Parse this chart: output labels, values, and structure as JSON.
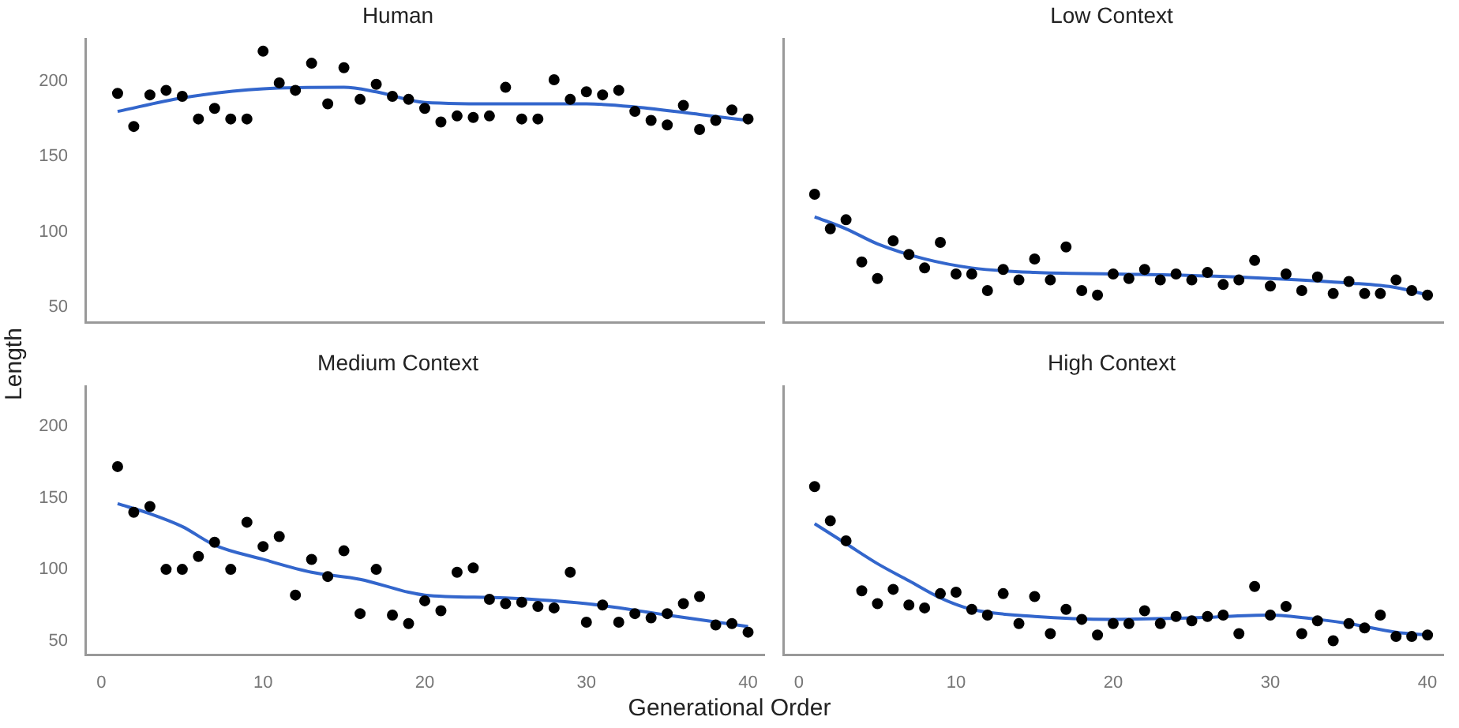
{
  "chart_data": [
    {
      "type": "scatter",
      "title": "Human",
      "ylabel": "Length",
      "xlim": [
        -1,
        41
      ],
      "ylim": [
        40,
        228
      ],
      "xticks": [
        0,
        10,
        20,
        30,
        40
      ],
      "yticks": [
        50,
        100,
        150,
        200
      ],
      "tick_labels": "y",
      "series": [
        {
          "color": "#000000",
          "marker": "circle",
          "x": [
            1,
            2,
            3,
            4,
            5,
            6,
            7,
            8,
            9,
            10,
            11,
            12,
            13,
            14,
            15,
            16,
            17,
            18,
            19,
            20,
            21,
            22,
            23,
            24,
            25,
            26,
            27,
            28,
            29,
            30,
            31,
            32,
            33,
            34,
            35,
            36,
            37,
            38,
            39,
            40
          ],
          "values": [
            192,
            170,
            191,
            194,
            190,
            175,
            182,
            175,
            175,
            220,
            199,
            194,
            212,
            185,
            209,
            188,
            198,
            190,
            188,
            182,
            173,
            177,
            176,
            177,
            196,
            175,
            175,
            201,
            188,
            193,
            191,
            194,
            180,
            174,
            171,
            184,
            168,
            174,
            181,
            175
          ]
        },
        {
          "type": "line",
          "color": "#3366cc",
          "marker": "none",
          "x": [
            1,
            5,
            10,
            15,
            17,
            20,
            25,
            30,
            33,
            37,
            40
          ],
          "values": [
            180,
            189,
            195,
            196,
            193,
            186,
            185,
            185,
            183,
            178,
            174
          ]
        }
      ]
    },
    {
      "type": "scatter",
      "title": "Low Context",
      "xlim": [
        -1,
        41
      ],
      "ylim": [
        40,
        228
      ],
      "xticks": [
        0,
        10,
        20,
        30,
        40
      ],
      "yticks": [
        50,
        100,
        150,
        200
      ],
      "tick_labels": false,
      "series": [
        {
          "color": "#000000",
          "marker": "circle",
          "x": [
            1,
            2,
            3,
            4,
            5,
            6,
            7,
            8,
            9,
            10,
            11,
            12,
            13,
            14,
            15,
            16,
            17,
            18,
            19,
            20,
            21,
            22,
            23,
            24,
            25,
            26,
            27,
            28,
            29,
            30,
            31,
            32,
            33,
            34,
            35,
            36,
            37,
            38,
            39,
            40
          ],
          "values": [
            125,
            102,
            108,
            80,
            69,
            94,
            85,
            76,
            93,
            72,
            72,
            61,
            75,
            68,
            82,
            68,
            90,
            61,
            58,
            72,
            69,
            75,
            68,
            72,
            68,
            73,
            65,
            68,
            81,
            64,
            72,
            61,
            70,
            59,
            67,
            59,
            59,
            68,
            61,
            58
          ]
        },
        {
          "type": "line",
          "color": "#3366cc",
          "marker": "none",
          "x": [
            1,
            3,
            5,
            8,
            11,
            15,
            20,
            25,
            30,
            35,
            38,
            40
          ],
          "values": [
            110,
            102,
            92,
            82,
            76,
            73,
            72,
            71,
            69,
            66,
            63,
            58
          ]
        }
      ]
    },
    {
      "type": "scatter",
      "title": "Medium Context",
      "xlabel": "Generational Order",
      "xlim": [
        -1,
        41
      ],
      "ylim": [
        40,
        228
      ],
      "xticks": [
        0,
        10,
        20,
        30,
        40
      ],
      "yticks": [
        50,
        100,
        150,
        200
      ],
      "series": [
        {
          "color": "#000000",
          "marker": "circle",
          "x": [
            1,
            2,
            3,
            4,
            5,
            6,
            7,
            8,
            9,
            10,
            11,
            12,
            13,
            14,
            15,
            16,
            17,
            18,
            19,
            20,
            21,
            22,
            23,
            24,
            25,
            26,
            27,
            28,
            29,
            30,
            31,
            32,
            33,
            34,
            35,
            36,
            37,
            38,
            39,
            40
          ],
          "values": [
            172,
            140,
            144,
            100,
            100,
            109,
            119,
            100,
            133,
            116,
            123,
            82,
            107,
            95,
            113,
            69,
            100,
            68,
            62,
            78,
            71,
            98,
            101,
            79,
            76,
            77,
            74,
            73,
            98,
            63,
            75,
            63,
            69,
            66,
            69,
            76,
            81,
            61,
            62,
            56
          ]
        },
        {
          "type": "line",
          "color": "#3366cc",
          "marker": "none",
          "x": [
            1,
            3,
            5,
            7,
            10,
            13,
            16,
            19,
            20,
            25,
            30,
            35,
            40
          ],
          "values": [
            146,
            139,
            130,
            117,
            107,
            98,
            93,
            84,
            82,
            80,
            76,
            68,
            60
          ]
        }
      ]
    },
    {
      "type": "scatter",
      "title": "High Context",
      "xlim": [
        -1,
        41
      ],
      "ylim": [
        40,
        228
      ],
      "xticks": [
        0,
        10,
        20,
        30,
        40
      ],
      "yticks": [
        50,
        100,
        150,
        200
      ],
      "tick_labels": "x",
      "series": [
        {
          "color": "#000000",
          "marker": "circle",
          "x": [
            1,
            2,
            3,
            4,
            5,
            6,
            7,
            8,
            9,
            10,
            11,
            12,
            13,
            14,
            15,
            16,
            17,
            18,
            19,
            20,
            21,
            22,
            23,
            24,
            25,
            26,
            27,
            28,
            29,
            30,
            31,
            32,
            33,
            34,
            35,
            36,
            37,
            38,
            39,
            40
          ],
          "values": [
            158,
            134,
            120,
            85,
            76,
            86,
            75,
            73,
            83,
            84,
            72,
            68,
            83,
            62,
            81,
            55,
            72,
            65,
            54,
            62,
            62,
            71,
            62,
            67,
            64,
            67,
            68,
            55,
            88,
            68,
            74,
            55,
            64,
            50,
            62,
            59,
            68,
            53,
            53,
            54
          ]
        },
        {
          "type": "line",
          "color": "#3366cc",
          "marker": "none",
          "x": [
            1,
            3,
            5,
            7,
            9,
            11,
            15,
            20,
            25,
            30,
            33,
            35,
            38,
            40
          ],
          "values": [
            132,
            118,
            104,
            92,
            80,
            72,
            67,
            65,
            66,
            68,
            65,
            62,
            56,
            54
          ]
        }
      ]
    }
  ]
}
